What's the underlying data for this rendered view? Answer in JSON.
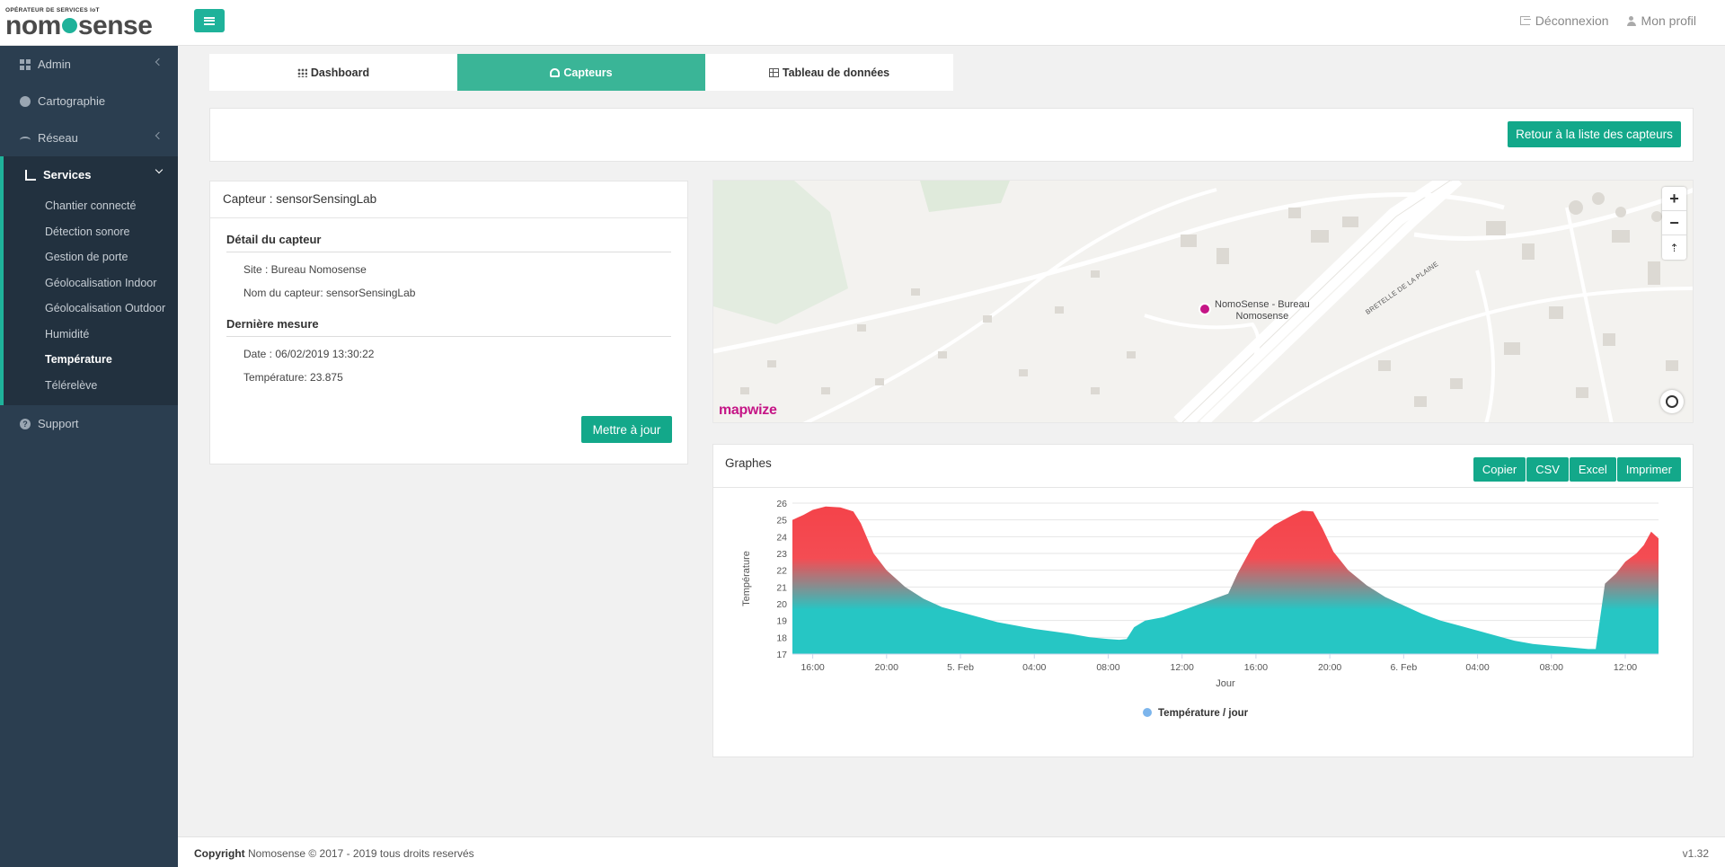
{
  "header": {
    "logo_sub": "OPÉRATEUR DE SERVICES IoT",
    "logo_left": "nom",
    "logo_right": "sense",
    "logout": "Déconnexion",
    "profile": "Mon profil"
  },
  "sidebar": {
    "admin": "Admin",
    "cartographie": "Cartographie",
    "reseau": "Réseau",
    "services": "Services",
    "sub": [
      "Chantier connecté",
      "Détection sonore",
      "Gestion de porte",
      "Géolocalisation Indoor",
      "Géolocalisation Outdoor",
      "Humidité",
      "Température",
      "Télérelève"
    ],
    "support": "Support"
  },
  "tabs": [
    "Dashboard",
    "Capteurs",
    "Tableau de données"
  ],
  "back_button": "Retour à la liste des capteurs",
  "sensor": {
    "title": "Capteur : sensorSensingLab",
    "detail_title": "Détail du capteur",
    "site": "Site : Bureau Nomosense",
    "name": "Nom du capteur: sensorSensingLab",
    "last_title": "Dernière mesure",
    "date": "Date : 06/02/2019 13:30:22",
    "temperature": "Température: 23.875",
    "update_button": "Mettre à jour"
  },
  "map": {
    "poi_line1": "NomoSense - Bureau",
    "poi_line2": "Nomosense",
    "road": "BRETELLE DE LA PLAINE",
    "brand": "mapwize",
    "zoom_in": "+",
    "zoom_out": "−",
    "reset": "⇡"
  },
  "graph": {
    "title": "Graphes",
    "buttons": [
      "Copier",
      "CSV",
      "Excel",
      "Imprimer"
    ]
  },
  "chart_data": {
    "type": "area",
    "ylabel": "Température",
    "xlabel": "Jour",
    "legend": "Température / jour",
    "legend_position": "bottom-center",
    "ylim": [
      17,
      26
    ],
    "y_ticks": [
      17,
      18,
      19,
      20,
      21,
      22,
      23,
      24,
      25,
      26
    ],
    "x_ticks": [
      "16:00",
      "20:00",
      "5. Feb",
      "04:00",
      "08:00",
      "12:00",
      "16:00",
      "20:00",
      "6. Feb",
      "04:00",
      "08:00",
      "12:00"
    ],
    "x_hours_start": 14.9,
    "x_hours_end": 61.8,
    "points": [
      [
        14.9,
        25.0
      ],
      [
        15.5,
        25.3
      ],
      [
        16.0,
        25.6
      ],
      [
        16.7,
        25.8
      ],
      [
        17.5,
        25.75
      ],
      [
        18.2,
        25.5
      ],
      [
        18.6,
        24.8
      ],
      [
        19.3,
        23.0
      ],
      [
        20.0,
        22.0
      ],
      [
        21.0,
        21.0
      ],
      [
        22.0,
        20.3
      ],
      [
        23.0,
        19.8
      ],
      [
        24.0,
        19.5
      ],
      [
        25.0,
        19.2
      ],
      [
        26.0,
        18.9
      ],
      [
        27.0,
        18.7
      ],
      [
        28.0,
        18.5
      ],
      [
        29.0,
        18.35
      ],
      [
        30.0,
        18.2
      ],
      [
        31.0,
        18.0
      ],
      [
        32.0,
        17.9
      ],
      [
        32.6,
        17.85
      ],
      [
        33.0,
        17.9
      ],
      [
        33.4,
        18.6
      ],
      [
        34.0,
        19.0
      ],
      [
        35.0,
        19.2
      ],
      [
        36.0,
        19.6
      ],
      [
        37.0,
        20.0
      ],
      [
        38.0,
        20.4
      ],
      [
        38.5,
        20.6
      ],
      [
        39.0,
        21.8
      ],
      [
        39.5,
        22.8
      ],
      [
        40.0,
        23.8
      ],
      [
        41.0,
        24.7
      ],
      [
        42.0,
        25.3
      ],
      [
        42.5,
        25.55
      ],
      [
        43.1,
        25.5
      ],
      [
        43.6,
        24.5
      ],
      [
        44.2,
        23.1
      ],
      [
        45.0,
        22.0
      ],
      [
        46.0,
        21.1
      ],
      [
        47.0,
        20.4
      ],
      [
        48.0,
        19.9
      ],
      [
        49.0,
        19.4
      ],
      [
        50.0,
        19.0
      ],
      [
        51.0,
        18.7
      ],
      [
        52.0,
        18.4
      ],
      [
        53.0,
        18.1
      ],
      [
        54.0,
        17.8
      ],
      [
        55.0,
        17.6
      ],
      [
        56.0,
        17.5
      ],
      [
        57.0,
        17.4
      ],
      [
        58.0,
        17.3
      ],
      [
        58.4,
        17.3
      ],
      [
        58.9,
        21.2
      ],
      [
        59.5,
        21.8
      ],
      [
        60.0,
        22.5
      ],
      [
        60.6,
        23.0
      ],
      [
        61.0,
        23.5
      ],
      [
        61.4,
        24.3
      ],
      [
        61.8,
        23.9
      ]
    ]
  },
  "footer": {
    "copyright_bold": "Copyright",
    "copyright_rest": " Nomosense © 2017 - 2019 tous droits reservés",
    "version": "v1.32"
  },
  "colors": {
    "accent": "#1fb29a",
    "sidebar": "#2b3e50",
    "area_top": "#f4434a",
    "area_bottom": "#26c6c4"
  }
}
